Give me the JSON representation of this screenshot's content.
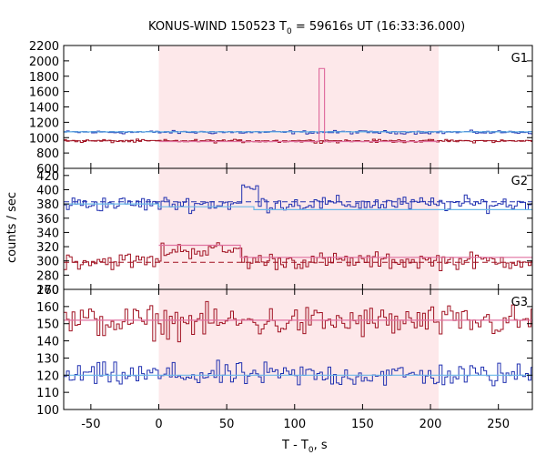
{
  "chart_data": {
    "type": "line",
    "title_main": "KONUS-WIND 150523 T",
    "title_sub": "0",
    "title_rest": " = 59616s UT (16:33:36.000)",
    "xlabel_main": "T - T",
    "xlabel_sub": "0",
    "xlabel_rest": ", s",
    "ylabel": "counts / sec",
    "xlim": [
      -70,
      275
    ],
    "xticks": [
      -50,
      0,
      50,
      100,
      150,
      200,
      250
    ],
    "highlight_interval": [
      0,
      206
    ],
    "colors": {
      "highlight": "#fde8ea",
      "blue": "#2030b0",
      "red": "#a01020",
      "light_blue": "#6ab8e8",
      "pink": "#e070a0"
    },
    "panels": [
      {
        "label": "G1",
        "ylim": [
          600,
          2200
        ],
        "yticks": [
          600,
          800,
          1000,
          1200,
          1400,
          1600,
          1800,
          2000,
          2200
        ],
        "background_levels": [
          {
            "series": "blue",
            "value": 1080,
            "style": "dashed"
          },
          {
            "series": "red",
            "value": 960,
            "style": "dashed"
          }
        ],
        "series": [
          {
            "color": "blue",
            "mean": 1070,
            "noise": 18,
            "segments": []
          },
          {
            "color": "red",
            "mean": 955,
            "noise": 18,
            "segments": []
          }
        ],
        "fits": [
          {
            "color": "light_blue",
            "x": [
              -70,
              275
            ],
            "y": [
              1075,
              1075
            ]
          },
          {
            "color": "pink",
            "x": [
              0,
              118,
              118,
              122,
              122,
              206
            ],
            "y": [
              950,
              950,
              1900,
              1900,
              950,
              950
            ]
          }
        ]
      },
      {
        "label": "G2",
        "ylim": [
          260,
          430
        ],
        "yticks": [
          260,
          280,
          300,
          320,
          340,
          360,
          380,
          400,
          420
        ],
        "background_levels": [
          {
            "series": "blue",
            "value": 383,
            "style": "dashed"
          },
          {
            "series": "red",
            "value": 298,
            "style": "dashed"
          }
        ],
        "series": [
          {
            "color": "blue",
            "mean": 380,
            "noise": 9,
            "segments": [
              {
                "x0": 60,
                "x1": 72,
                "add": 22
              }
            ]
          },
          {
            "color": "red",
            "mean": 300,
            "noise": 10,
            "segments": [
              {
                "x0": 0,
                "x1": 60,
                "add": 15
              }
            ]
          }
        ],
        "fits": [
          {
            "color": "light_blue",
            "x": [
              -70,
              0,
              0,
              70,
              70,
              275
            ],
            "y": [
              380,
              380,
              376,
              376,
              372,
              372
            ]
          },
          {
            "color": "pink",
            "x": [
              0,
              60,
              60,
              275
            ],
            "y": [
              322,
              322,
              305,
              305
            ]
          }
        ]
      },
      {
        "label": "G3",
        "ylim": [
          100,
          170
        ],
        "yticks": [
          100,
          110,
          120,
          130,
          140,
          150,
          160,
          170
        ],
        "background_levels": [],
        "series": [
          {
            "color": "red",
            "mean": 151,
            "noise": 8,
            "segments": []
          },
          {
            "color": "blue",
            "mean": 120,
            "noise": 6,
            "segments": []
          }
        ],
        "fits": [
          {
            "color": "pink",
            "x": [
              -70,
              275
            ],
            "y": [
              152,
              152
            ]
          },
          {
            "color": "light_blue",
            "x": [
              -70,
              275
            ],
            "y": [
              120,
              120
            ]
          }
        ]
      }
    ]
  }
}
